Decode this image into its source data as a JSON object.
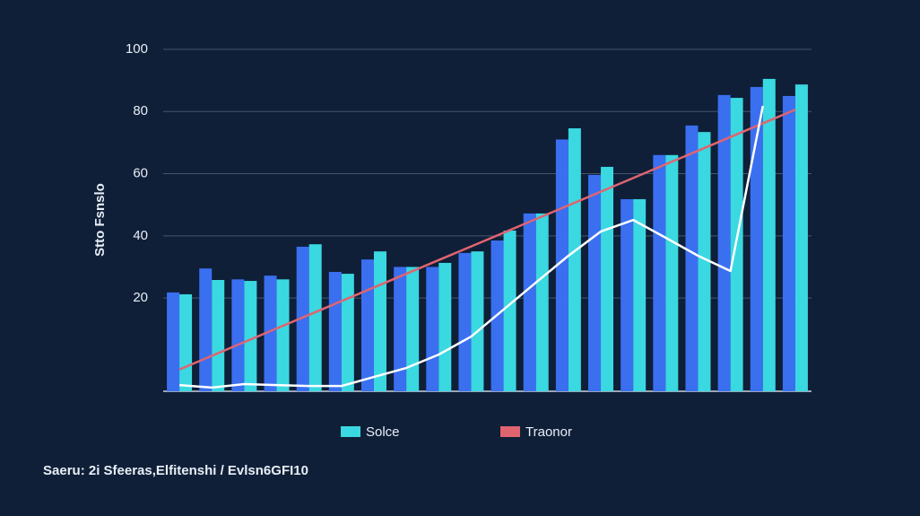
{
  "chart_data": {
    "type": "bar",
    "y_label": "Stto Fsnslo",
    "source": "Saeru: 2i Sfeeras,Elfitenshi / Evlsn6GFI10",
    "categories": [
      null,
      null,
      null,
      null,
      null,
      null,
      null,
      null,
      null,
      null,
      null,
      null,
      null,
      null,
      null,
      null,
      null,
      null,
      null,
      null
    ],
    "series": [
      {
        "color": "#3a6ff0",
        "type": "bar",
        "values": [
          21.8,
          29.5,
          26,
          27.2,
          36.5,
          28.4,
          32.4,
          30,
          30,
          34.5,
          38.5,
          47.2,
          71,
          59.6,
          51.8,
          66,
          75.5,
          85.3,
          87.9,
          85
        ]
      },
      {
        "name": "Solce",
        "color": "#3ad8e0",
        "type": "bar",
        "values": [
          21.2,
          25.8,
          25.5,
          26,
          37.3,
          27.8,
          35,
          30,
          31.3,
          35,
          41.7,
          47.2,
          74.6,
          62.2,
          51.8,
          66,
          73.4,
          84.4,
          90.5,
          88.7
        ]
      },
      {
        "name": "Traonor",
        "color": "#e06470",
        "type": "line",
        "values": [
          -3,
          1.4,
          5.8,
          10.2,
          14.6,
          19,
          23.4,
          27.8,
          32.2,
          36.6,
          41,
          45.4,
          49.8,
          54.2,
          58.6,
          63,
          67.4,
          71.8,
          76.2,
          80.6
        ]
      },
      {
        "color": "#ffffff",
        "type": "line",
        "values": [
          -8,
          -8.8,
          -7.7,
          -8,
          -8.3,
          -8.3,
          -5.4,
          -2.5,
          1.8,
          7.6,
          16.3,
          25,
          33.6,
          41.4,
          45.1,
          39.4,
          33.6,
          28.7,
          81.8,
          null
        ]
      }
    ],
    "ylim": [
      -10,
      100
    ],
    "yticks": [
      20,
      40,
      60,
      80,
      100
    ],
    "grid": true
  }
}
